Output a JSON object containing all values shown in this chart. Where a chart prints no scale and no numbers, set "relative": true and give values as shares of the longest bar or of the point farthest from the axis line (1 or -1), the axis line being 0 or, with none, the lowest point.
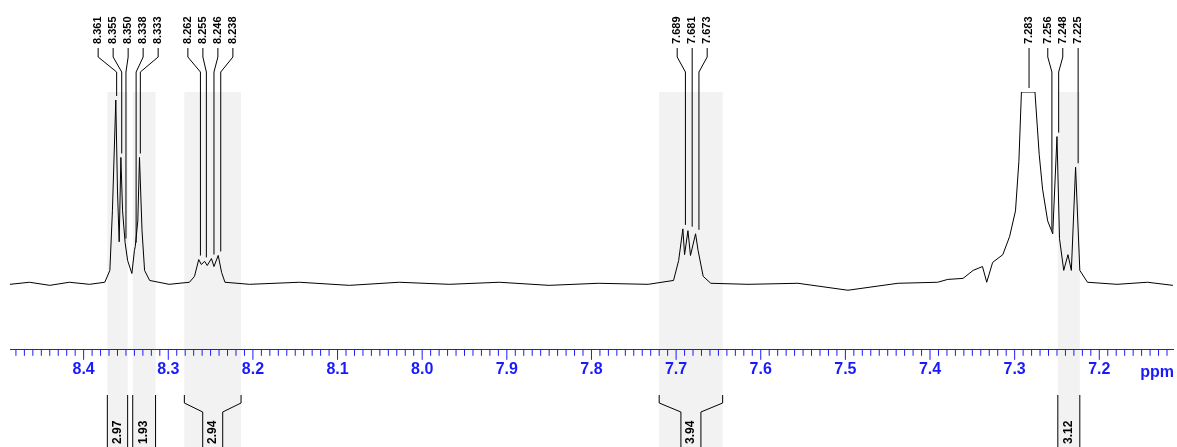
{
  "chart_data": {
    "type": "line",
    "relative": true,
    "xlabel": "ppm",
    "xlim": [
      8.487,
      7.112
    ],
    "xticks": [
      {
        "value": 8.48,
        "label": null
      },
      {
        "value": 8.47,
        "label": null
      },
      {
        "value": 8.46,
        "label": null
      },
      {
        "value": 8.45,
        "label": null
      },
      {
        "value": 8.44,
        "label": null
      },
      {
        "value": 8.43,
        "label": null
      },
      {
        "value": 8.42,
        "label": null
      },
      {
        "value": 8.41,
        "label": null
      },
      {
        "value": 8.4,
        "label": "8.4"
      },
      {
        "value": 8.39,
        "label": null
      },
      {
        "value": 8.38,
        "label": null
      },
      {
        "value": 8.37,
        "label": null
      },
      {
        "value": 8.36,
        "label": null
      },
      {
        "value": 8.35,
        "label": null
      },
      {
        "value": 8.34,
        "label": null
      },
      {
        "value": 8.33,
        "label": null
      },
      {
        "value": 8.32,
        "label": null
      },
      {
        "value": 8.31,
        "label": null
      },
      {
        "value": 8.3,
        "label": "8.3"
      },
      {
        "value": 8.29,
        "label": null
      },
      {
        "value": 8.28,
        "label": null
      },
      {
        "value": 8.27,
        "label": null
      },
      {
        "value": 8.26,
        "label": null
      },
      {
        "value": 8.25,
        "label": null
      },
      {
        "value": 8.24,
        "label": null
      },
      {
        "value": 8.23,
        "label": null
      },
      {
        "value": 8.22,
        "label": null
      },
      {
        "value": 8.21,
        "label": null
      },
      {
        "value": 8.2,
        "label": "8.2"
      },
      {
        "value": 8.19,
        "label": null
      },
      {
        "value": 8.18,
        "label": null
      },
      {
        "value": 8.17,
        "label": null
      },
      {
        "value": 8.16,
        "label": null
      },
      {
        "value": 8.15,
        "label": null
      },
      {
        "value": 8.14,
        "label": null
      },
      {
        "value": 8.13,
        "label": null
      },
      {
        "value": 8.12,
        "label": null
      },
      {
        "value": 8.11,
        "label": null
      },
      {
        "value": 8.1,
        "label": "8.1"
      },
      {
        "value": 8.09,
        "label": null
      },
      {
        "value": 8.08,
        "label": null
      },
      {
        "value": 8.07,
        "label": null
      },
      {
        "value": 8.06,
        "label": null
      },
      {
        "value": 8.05,
        "label": null
      },
      {
        "value": 8.04,
        "label": null
      },
      {
        "value": 8.03,
        "label": null
      },
      {
        "value": 8.02,
        "label": null
      },
      {
        "value": 8.01,
        "label": null
      },
      {
        "value": 8.0,
        "label": "8.0"
      },
      {
        "value": 7.99,
        "label": null
      },
      {
        "value": 7.98,
        "label": null
      },
      {
        "value": 7.97,
        "label": null
      },
      {
        "value": 7.96,
        "label": null
      },
      {
        "value": 7.95,
        "label": null
      },
      {
        "value": 7.94,
        "label": null
      },
      {
        "value": 7.93,
        "label": null
      },
      {
        "value": 7.92,
        "label": null
      },
      {
        "value": 7.91,
        "label": null
      },
      {
        "value": 7.9,
        "label": "7.9"
      },
      {
        "value": 7.89,
        "label": null
      },
      {
        "value": 7.88,
        "label": null
      },
      {
        "value": 7.87,
        "label": null
      },
      {
        "value": 7.86,
        "label": null
      },
      {
        "value": 7.85,
        "label": null
      },
      {
        "value": 7.84,
        "label": null
      },
      {
        "value": 7.83,
        "label": null
      },
      {
        "value": 7.82,
        "label": null
      },
      {
        "value": 7.81,
        "label": null
      },
      {
        "value": 7.8,
        "label": "7.8"
      },
      {
        "value": 7.79,
        "label": null
      },
      {
        "value": 7.78,
        "label": null
      },
      {
        "value": 7.77,
        "label": null
      },
      {
        "value": 7.76,
        "label": null
      },
      {
        "value": 7.75,
        "label": null
      },
      {
        "value": 7.74,
        "label": null
      },
      {
        "value": 7.73,
        "label": null
      },
      {
        "value": 7.72,
        "label": null
      },
      {
        "value": 7.71,
        "label": null
      },
      {
        "value": 7.7,
        "label": "7.7"
      },
      {
        "value": 7.69,
        "label": null
      },
      {
        "value": 7.68,
        "label": null
      },
      {
        "value": 7.67,
        "label": null
      },
      {
        "value": 7.66,
        "label": null
      },
      {
        "value": 7.65,
        "label": null
      },
      {
        "value": 7.64,
        "label": null
      },
      {
        "value": 7.63,
        "label": null
      },
      {
        "value": 7.62,
        "label": null
      },
      {
        "value": 7.61,
        "label": null
      },
      {
        "value": 7.6,
        "label": "7.6"
      },
      {
        "value": 7.59,
        "label": null
      },
      {
        "value": 7.58,
        "label": null
      },
      {
        "value": 7.57,
        "label": null
      },
      {
        "value": 7.56,
        "label": null
      },
      {
        "value": 7.55,
        "label": null
      },
      {
        "value": 7.54,
        "label": null
      },
      {
        "value": 7.53,
        "label": null
      },
      {
        "value": 7.52,
        "label": null
      },
      {
        "value": 7.51,
        "label": null
      },
      {
        "value": 7.5,
        "label": "7.5"
      },
      {
        "value": 7.49,
        "label": null
      },
      {
        "value": 7.48,
        "label": null
      },
      {
        "value": 7.47,
        "label": null
      },
      {
        "value": 7.46,
        "label": null
      },
      {
        "value": 7.45,
        "label": null
      },
      {
        "value": 7.44,
        "label": null
      },
      {
        "value": 7.43,
        "label": null
      },
      {
        "value": 7.42,
        "label": null
      },
      {
        "value": 7.41,
        "label": null
      },
      {
        "value": 7.4,
        "label": "7.4"
      },
      {
        "value": 7.39,
        "label": null
      },
      {
        "value": 7.38,
        "label": null
      },
      {
        "value": 7.37,
        "label": null
      },
      {
        "value": 7.36,
        "label": null
      },
      {
        "value": 7.35,
        "label": null
      },
      {
        "value": 7.34,
        "label": null
      },
      {
        "value": 7.33,
        "label": null
      },
      {
        "value": 7.32,
        "label": null
      },
      {
        "value": 7.31,
        "label": null
      },
      {
        "value": 7.3,
        "label": "7.3"
      },
      {
        "value": 7.29,
        "label": null
      },
      {
        "value": 7.28,
        "label": null
      },
      {
        "value": 7.27,
        "label": null
      },
      {
        "value": 7.26,
        "label": null
      },
      {
        "value": 7.25,
        "label": null
      },
      {
        "value": 7.24,
        "label": null
      },
      {
        "value": 7.23,
        "label": null
      },
      {
        "value": 7.22,
        "label": null
      },
      {
        "value": 7.21,
        "label": null
      },
      {
        "value": 7.2,
        "label": "7.2"
      },
      {
        "value": 7.19,
        "label": null
      },
      {
        "value": 7.18,
        "label": null
      },
      {
        "value": 7.17,
        "label": null
      },
      {
        "value": 7.16,
        "label": null
      },
      {
        "value": 7.15,
        "label": null
      },
      {
        "value": 7.14,
        "label": null
      },
      {
        "value": 7.13,
        "label": null
      },
      {
        "value": 7.12,
        "label": null
      }
    ],
    "x": [
      8.487,
      8.464,
      8.44,
      8.417,
      8.393,
      8.375,
      8.369,
      8.366,
      8.362,
      8.36,
      8.358,
      8.356,
      8.354,
      8.351,
      8.348,
      8.343,
      8.34,
      8.339,
      8.336,
      8.334,
      8.331,
      8.328,
      8.322,
      8.299,
      8.275,
      8.269,
      8.264,
      8.261,
      8.257,
      8.254,
      8.249,
      8.246,
      8.241,
      8.237,
      8.233,
      8.204,
      8.145,
      8.086,
      8.027,
      7.968,
      7.909,
      7.85,
      7.792,
      7.733,
      7.703,
      7.697,
      7.692,
      7.69,
      7.686,
      7.683,
      7.677,
      7.674,
      7.668,
      7.659,
      7.615,
      7.556,
      7.497,
      7.438,
      7.391,
      7.379,
      7.361,
      7.349,
      7.338,
      7.333,
      7.326,
      7.314,
      7.306,
      7.299,
      7.295,
      7.292,
      7.276,
      7.271,
      7.267,
      7.261,
      7.255,
      7.25,
      7.247,
      7.242,
      7.237,
      7.233,
      7.228,
      7.223,
      7.214,
      7.179,
      7.143,
      7.113
    ],
    "series": [
      {
        "color": "#000000",
        "values": [
          0.254,
          0.262,
          0.25,
          0.262,
          0.254,
          0.262,
          0.308,
          0.539,
          0.969,
          0.616,
          0.419,
          0.746,
          0.539,
          0.416,
          0.346,
          0.296,
          0.385,
          0.4,
          0.5,
          0.746,
          0.462,
          0.308,
          0.269,
          0.254,
          0.262,
          0.285,
          0.35,
          0.331,
          0.343,
          0.327,
          0.354,
          0.323,
          0.366,
          0.3,
          0.262,
          0.254,
          0.262,
          0.25,
          0.262,
          0.254,
          0.262,
          0.25,
          0.258,
          0.254,
          0.269,
          0.346,
          0.469,
          0.369,
          0.462,
          0.366,
          0.45,
          0.385,
          0.285,
          0.258,
          0.254,
          0.258,
          0.231,
          0.258,
          0.262,
          0.273,
          0.277,
          0.308,
          0.323,
          0.262,
          0.339,
          0.369,
          0.439,
          0.539,
          0.731,
          1,
          1,
          0.758,
          0.623,
          0.5,
          0.45,
          0.827,
          0.431,
          0.308,
          0.369,
          0.308,
          0.708,
          0.308,
          0.262,
          0.254,
          0.262,
          0.25
        ]
      }
    ],
    "annotations": [
      {
        "text": "8.361",
        "x": 8.361,
        "y": 0.969
      },
      {
        "text": "8.355",
        "x": 8.355,
        "y": 0.746
      },
      {
        "text": "8.350",
        "x": 8.35,
        "y": 0.416
      },
      {
        "text": "8.338",
        "x": 8.338,
        "y": 0.4
      },
      {
        "text": "8.333",
        "x": 8.333,
        "y": 0.746
      },
      {
        "text": "8.262",
        "x": 8.262,
        "y": 0.35
      },
      {
        "text": "8.255",
        "x": 8.255,
        "y": 0.343
      },
      {
        "text": "8.246",
        "x": 8.246,
        "y": 0.354
      },
      {
        "text": "8.238",
        "x": 8.238,
        "y": 0.366
      },
      {
        "text": "7.689",
        "x": 7.689,
        "y": 0.469
      },
      {
        "text": "7.681",
        "x": 7.681,
        "y": 0.462
      },
      {
        "text": "7.673",
        "x": 7.673,
        "y": 0.45
      },
      {
        "text": "7.283",
        "x": 7.283,
        "y": 1
      },
      {
        "text": "7.256",
        "x": 7.256,
        "y": 0.45
      },
      {
        "text": "7.248",
        "x": 7.248,
        "y": 0.827
      },
      {
        "text": "7.225",
        "x": 7.225,
        "y": 0.708
      }
    ],
    "bands": [
      {
        "axis": "x",
        "from": 8.372,
        "to": 8.348,
        "label": "2.97",
        "color": "#f2f2f2"
      },
      {
        "axis": "x",
        "from": 8.342,
        "to": 8.315,
        "label": "1.93",
        "color": "#f2f2f2"
      },
      {
        "axis": "x",
        "from": 8.281,
        "to": 8.214,
        "label": "2.94",
        "color": "#f2f2f2"
      },
      {
        "axis": "x",
        "from": 7.72,
        "to": 7.645,
        "label": "3.94",
        "color": "#f2f2f2"
      },
      {
        "axis": "x",
        "from": 7.249,
        "to": 7.223,
        "label": "3.12",
        "color": "#f2f2f2"
      }
    ],
    "grid": false,
    "legend": false,
    "marker": "none",
    "line_style": "solid",
    "tick_labels": "x"
  }
}
